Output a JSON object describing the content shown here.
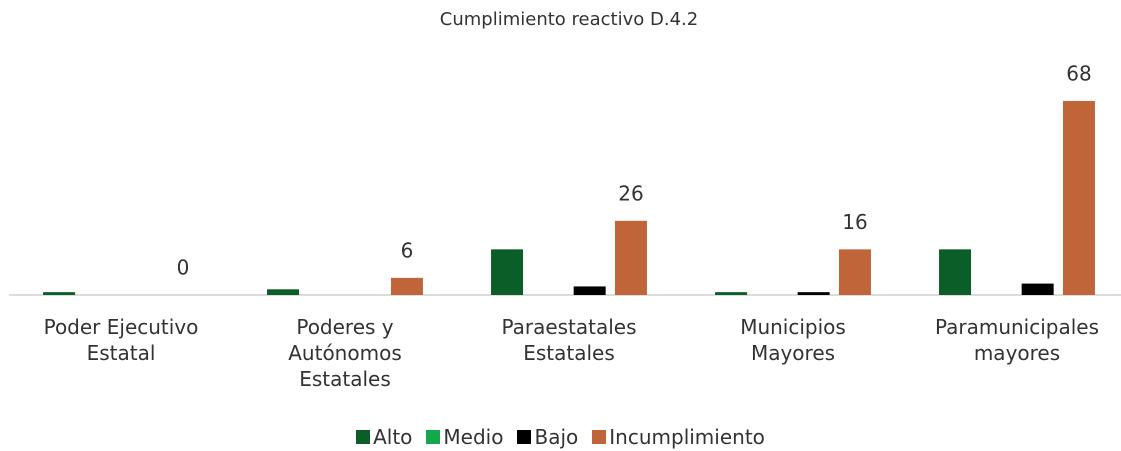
{
  "chart_data": {
    "type": "bar",
    "title": "Cumplimiento reactivo D.4.2",
    "categories": [
      "Poder Ejecutivo Estatal",
      "Poderes y Autónomos Estatales",
      "Paraestatales Estatales",
      "Municipios Mayores",
      "Paramunicipales mayores"
    ],
    "series": [
      {
        "name": "Alto",
        "color": "#0b5e28",
        "values": [
          1,
          2,
          16,
          1,
          16
        ]
      },
      {
        "name": "Medio",
        "color": "#13a84a",
        "values": [
          0,
          0,
          0,
          0,
          0
        ]
      },
      {
        "name": "Bajo",
        "color": "#000000",
        "values": [
          0,
          0,
          3,
          1,
          4
        ]
      },
      {
        "name": "Incumplimiento",
        "color": "#c0653a",
        "values": [
          0,
          6,
          26,
          16,
          68
        ],
        "data_labels": true
      }
    ],
    "ylim": [
      0,
      75
    ],
    "legend": "bottom"
  }
}
